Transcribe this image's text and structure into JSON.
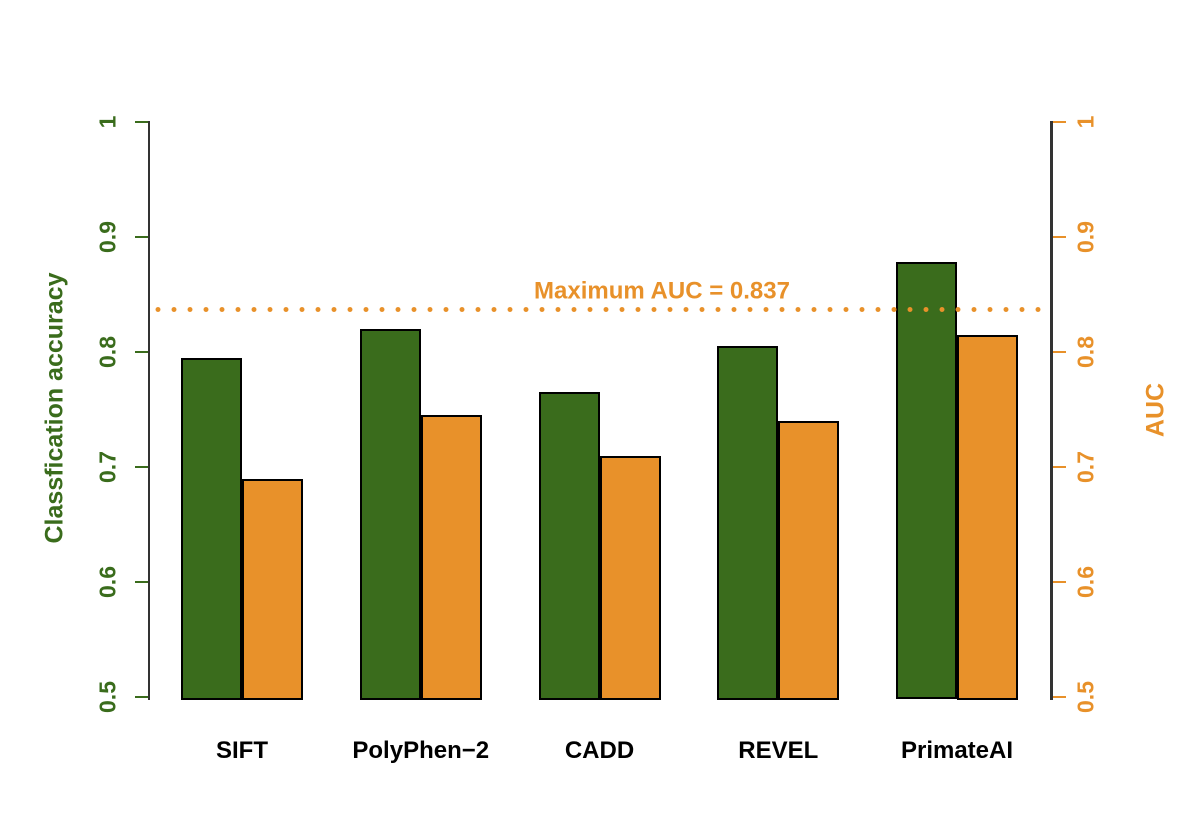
{
  "chart_data": {
    "type": "bar",
    "title": "",
    "categories": [
      "SIFT",
      "PolyPhen−2",
      "CADD",
      "REVEL",
      "PrimateAI"
    ],
    "series": [
      {
        "name": "Classfication accuracy",
        "axis": "left",
        "color": "#3A6C1C",
        "values": [
          0.795,
          0.82,
          0.765,
          0.805,
          0.878
        ]
      },
      {
        "name": "AUC",
        "axis": "right",
        "color": "#E8912A",
        "values": [
          0.69,
          0.745,
          0.71,
          0.74,
          0.815
        ]
      }
    ],
    "ylabel_left": "Classfication accuracy",
    "ylabel_right": "AUC",
    "ylim": [
      0.5,
      1.0
    ],
    "yticks": [
      0.5,
      0.6,
      0.7,
      0.8,
      0.9,
      1
    ],
    "ytick_labels": [
      "0.5",
      "0.6",
      "0.7",
      "0.8",
      "0.9",
      "1"
    ],
    "grid": false,
    "legend": "none",
    "reference_line": {
      "value": 0.837,
      "label": "Maximum AUC = 0.837",
      "style": "dotted",
      "color": "#E8912A"
    }
  },
  "colors": {
    "accuracy_green": "#3A6C1C",
    "auc_orange": "#E8912A",
    "axis_line": "#333333",
    "bar_border": "#000000",
    "category_label": "#000000",
    "background": "#FFFFFF"
  }
}
